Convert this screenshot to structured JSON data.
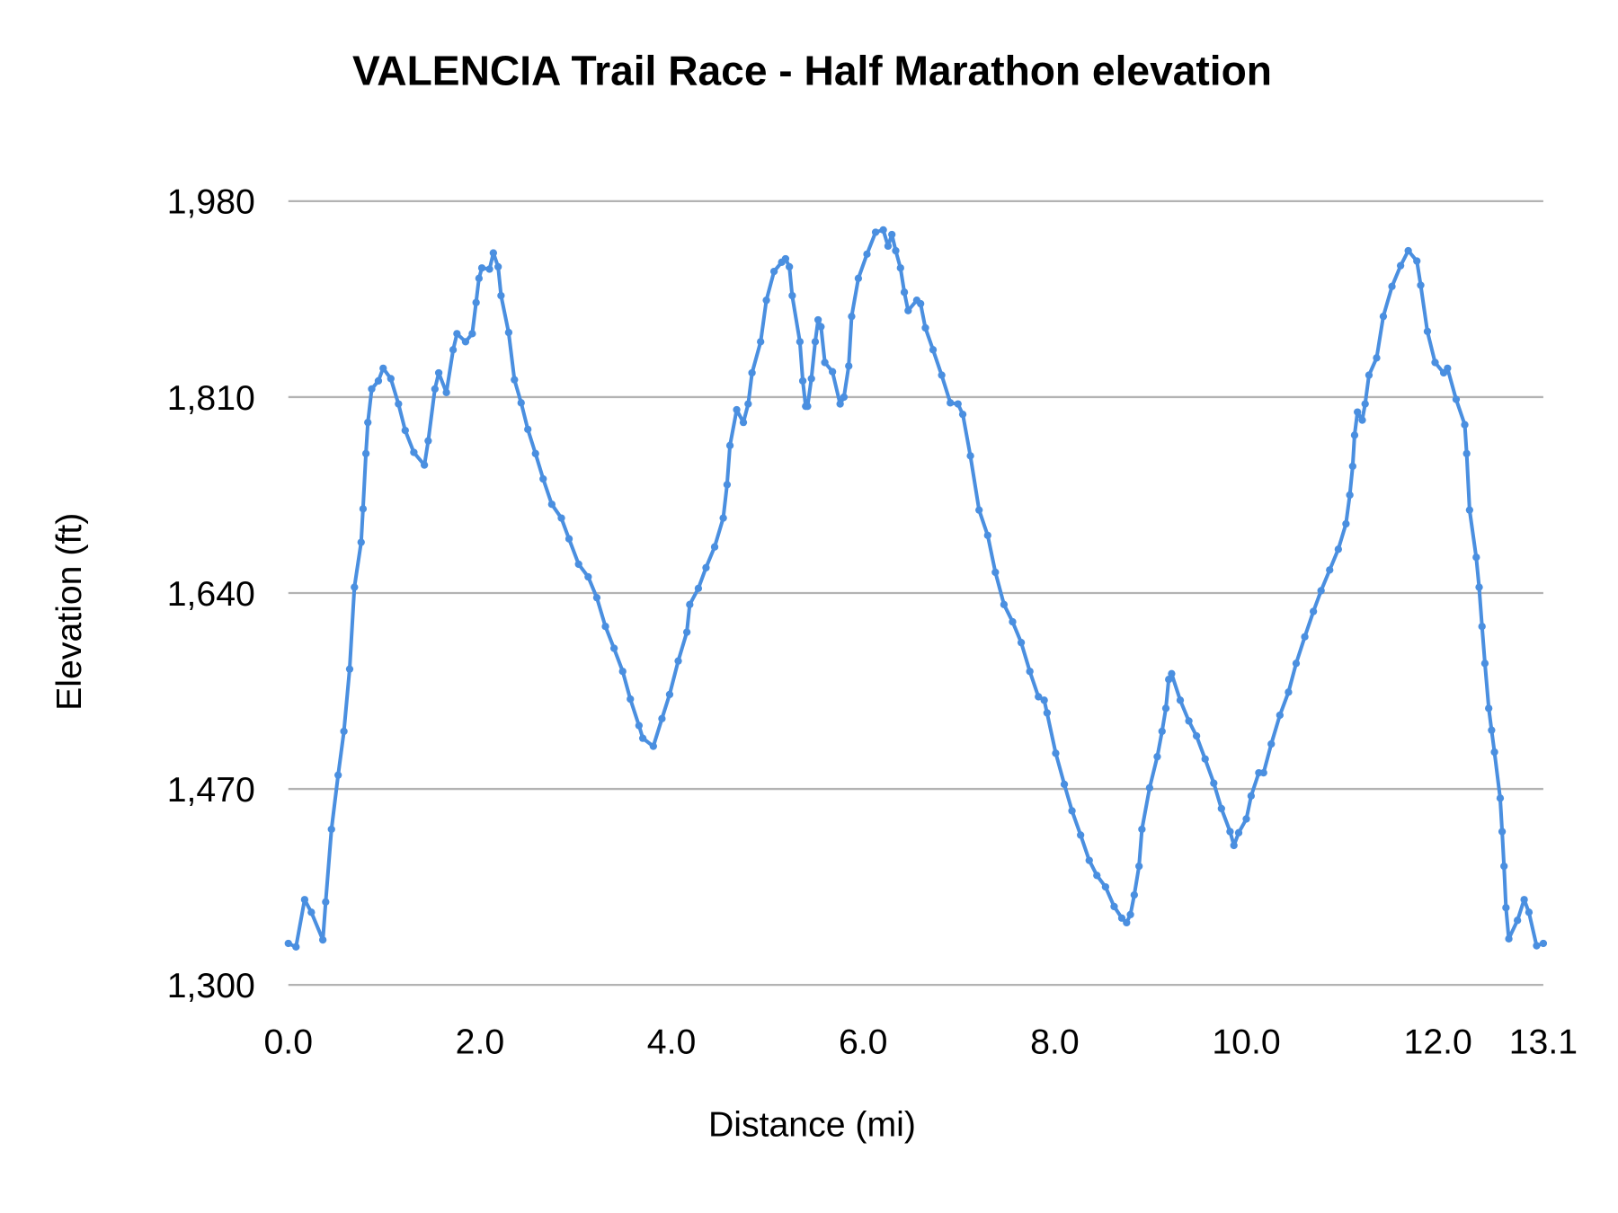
{
  "chart_data": {
    "type": "line",
    "title": "VALENCIA Trail Race - Half Marathon elevation",
    "xlabel": "Distance (mi)",
    "ylabel": "Elevation (ft)",
    "xlim": [
      0,
      13.1
    ],
    "ylim": [
      1300,
      1980
    ],
    "x_ticks": [
      "0.0",
      "2.0",
      "4.0",
      "6.0",
      "8.0",
      "10.0",
      "12.0",
      "13.1"
    ],
    "x_tick_values": [
      0,
      2,
      4,
      6,
      8,
      10,
      12,
      13.1
    ],
    "y_ticks": [
      "1,300",
      "1,470",
      "1,640",
      "1,810",
      "1,980"
    ],
    "y_tick_values": [
      1300,
      1470,
      1640,
      1810,
      1980
    ],
    "grid": "horizontal",
    "markers": true,
    "line_color": "#4a8fe0",
    "grid_color": "#b3b3b3",
    "x": [
      0.0,
      0.08,
      0.17,
      0.24,
      0.36,
      0.39,
      0.45,
      0.52,
      0.58,
      0.64,
      0.69,
      0.76,
      0.78,
      0.81,
      0.83,
      0.87,
      0.94,
      0.99,
      1.07,
      1.15,
      1.22,
      1.31,
      1.42,
      1.46,
      1.53,
      1.57,
      1.65,
      1.72,
      1.76,
      1.85,
      1.92,
      1.96,
      1.99,
      2.02,
      2.1,
      2.14,
      2.19,
      2.22,
      2.3,
      2.36,
      2.43,
      2.5,
      2.58,
      2.66,
      2.75,
      2.85,
      2.93,
      3.03,
      3.13,
      3.22,
      3.31,
      3.4,
      3.49,
      3.57,
      3.66,
      3.7,
      3.81,
      3.9,
      3.98,
      4.07,
      4.16,
      4.19,
      4.28,
      4.36,
      4.45,
      4.54,
      4.58,
      4.61,
      4.68,
      4.75,
      4.8,
      4.84,
      4.93,
      4.99,
      5.07,
      5.15,
      5.19,
      5.23,
      5.26,
      5.34,
      5.37,
      5.4,
      5.42,
      5.46,
      5.5,
      5.53,
      5.56,
      5.6,
      5.68,
      5.76,
      5.8,
      5.85,
      5.88,
      5.95,
      6.04,
      6.13,
      6.21,
      6.26,
      6.3,
      6.34,
      6.39,
      6.43,
      6.47,
      6.56,
      6.6,
      6.65,
      6.73,
      6.82,
      6.91,
      6.99,
      7.04,
      7.12,
      7.21,
      7.3,
      7.38,
      7.47,
      7.56,
      7.65,
      7.74,
      7.83,
      7.89,
      7.92,
      8.01,
      8.1,
      8.18,
      8.27,
      8.36,
      8.44,
      8.53,
      8.62,
      8.7,
      8.75,
      8.79,
      8.83,
      8.88,
      8.91,
      8.99,
      9.07,
      9.12,
      9.16,
      9.19,
      9.22,
      9.31,
      9.4,
      9.48,
      9.57,
      9.66,
      9.74,
      9.83,
      9.87,
      9.92,
      10.0,
      10.05,
      10.13,
      10.18,
      10.26,
      10.35,
      10.44,
      10.52,
      10.61,
      10.7,
      10.78,
      10.87,
      10.96,
      11.04,
      11.08,
      11.11,
      11.13,
      11.16,
      11.21,
      11.24,
      11.28,
      11.36,
      11.43,
      11.52,
      11.61,
      11.69,
      11.78,
      11.82,
      11.89,
      11.97,
      12.06,
      12.1,
      12.19,
      12.28,
      12.3,
      12.33,
      12.4,
      12.43,
      12.46,
      12.49,
      12.53,
      12.56,
      12.59,
      12.65,
      12.67,
      12.69,
      12.71,
      12.74,
      12.83,
      12.9,
      12.95,
      13.03,
      13.1
    ],
    "y": [
      1336,
      1333,
      1374,
      1363,
      1339,
      1372,
      1435,
      1482,
      1520,
      1574,
      1645,
      1684,
      1713,
      1761,
      1788,
      1817,
      1824,
      1835,
      1826,
      1804,
      1781,
      1762,
      1751,
      1772,
      1817,
      1831,
      1814,
      1851,
      1865,
      1858,
      1865,
      1892,
      1913,
      1922,
      1921,
      1935,
      1923,
      1898,
      1866,
      1825,
      1805,
      1782,
      1761,
      1739,
      1717,
      1705,
      1687,
      1665,
      1654,
      1636,
      1611,
      1592,
      1572,
      1548,
      1525,
      1514,
      1507,
      1531,
      1552,
      1581,
      1606,
      1630,
      1644,
      1662,
      1680,
      1705,
      1734,
      1768,
      1799,
      1788,
      1804,
      1831,
      1858,
      1894,
      1919,
      1927,
      1930,
      1923,
      1898,
      1858,
      1824,
      1802,
      1802,
      1826,
      1858,
      1877,
      1871,
      1840,
      1832,
      1804,
      1810,
      1837,
      1880,
      1913,
      1934,
      1953,
      1955,
      1941,
      1951,
      1937,
      1922,
      1901,
      1885,
      1894,
      1891,
      1870,
      1851,
      1829,
      1805,
      1804,
      1795,
      1759,
      1712,
      1690,
      1658,
      1630,
      1615,
      1597,
      1572,
      1550,
      1547,
      1536,
      1501,
      1474,
      1451,
      1430,
      1408,
      1395,
      1385,
      1368,
      1358,
      1354,
      1361,
      1378,
      1403,
      1435,
      1471,
      1498,
      1520,
      1540,
      1565,
      1570,
      1547,
      1529,
      1516,
      1496,
      1475,
      1453,
      1433,
      1421,
      1432,
      1444,
      1464,
      1484,
      1484,
      1509,
      1534,
      1554,
      1579,
      1602,
      1624,
      1642,
      1660,
      1678,
      1700,
      1725,
      1750,
      1777,
      1797,
      1790,
      1804,
      1829,
      1844,
      1880,
      1906,
      1924,
      1937,
      1928,
      1907,
      1867,
      1840,
      1831,
      1835,
      1808,
      1786,
      1761,
      1712,
      1671,
      1645,
      1611,
      1579,
      1540,
      1521,
      1502,
      1462,
      1433,
      1403,
      1367,
      1340,
      1356,
      1374,
      1363,
      1334,
      1336
    ]
  }
}
